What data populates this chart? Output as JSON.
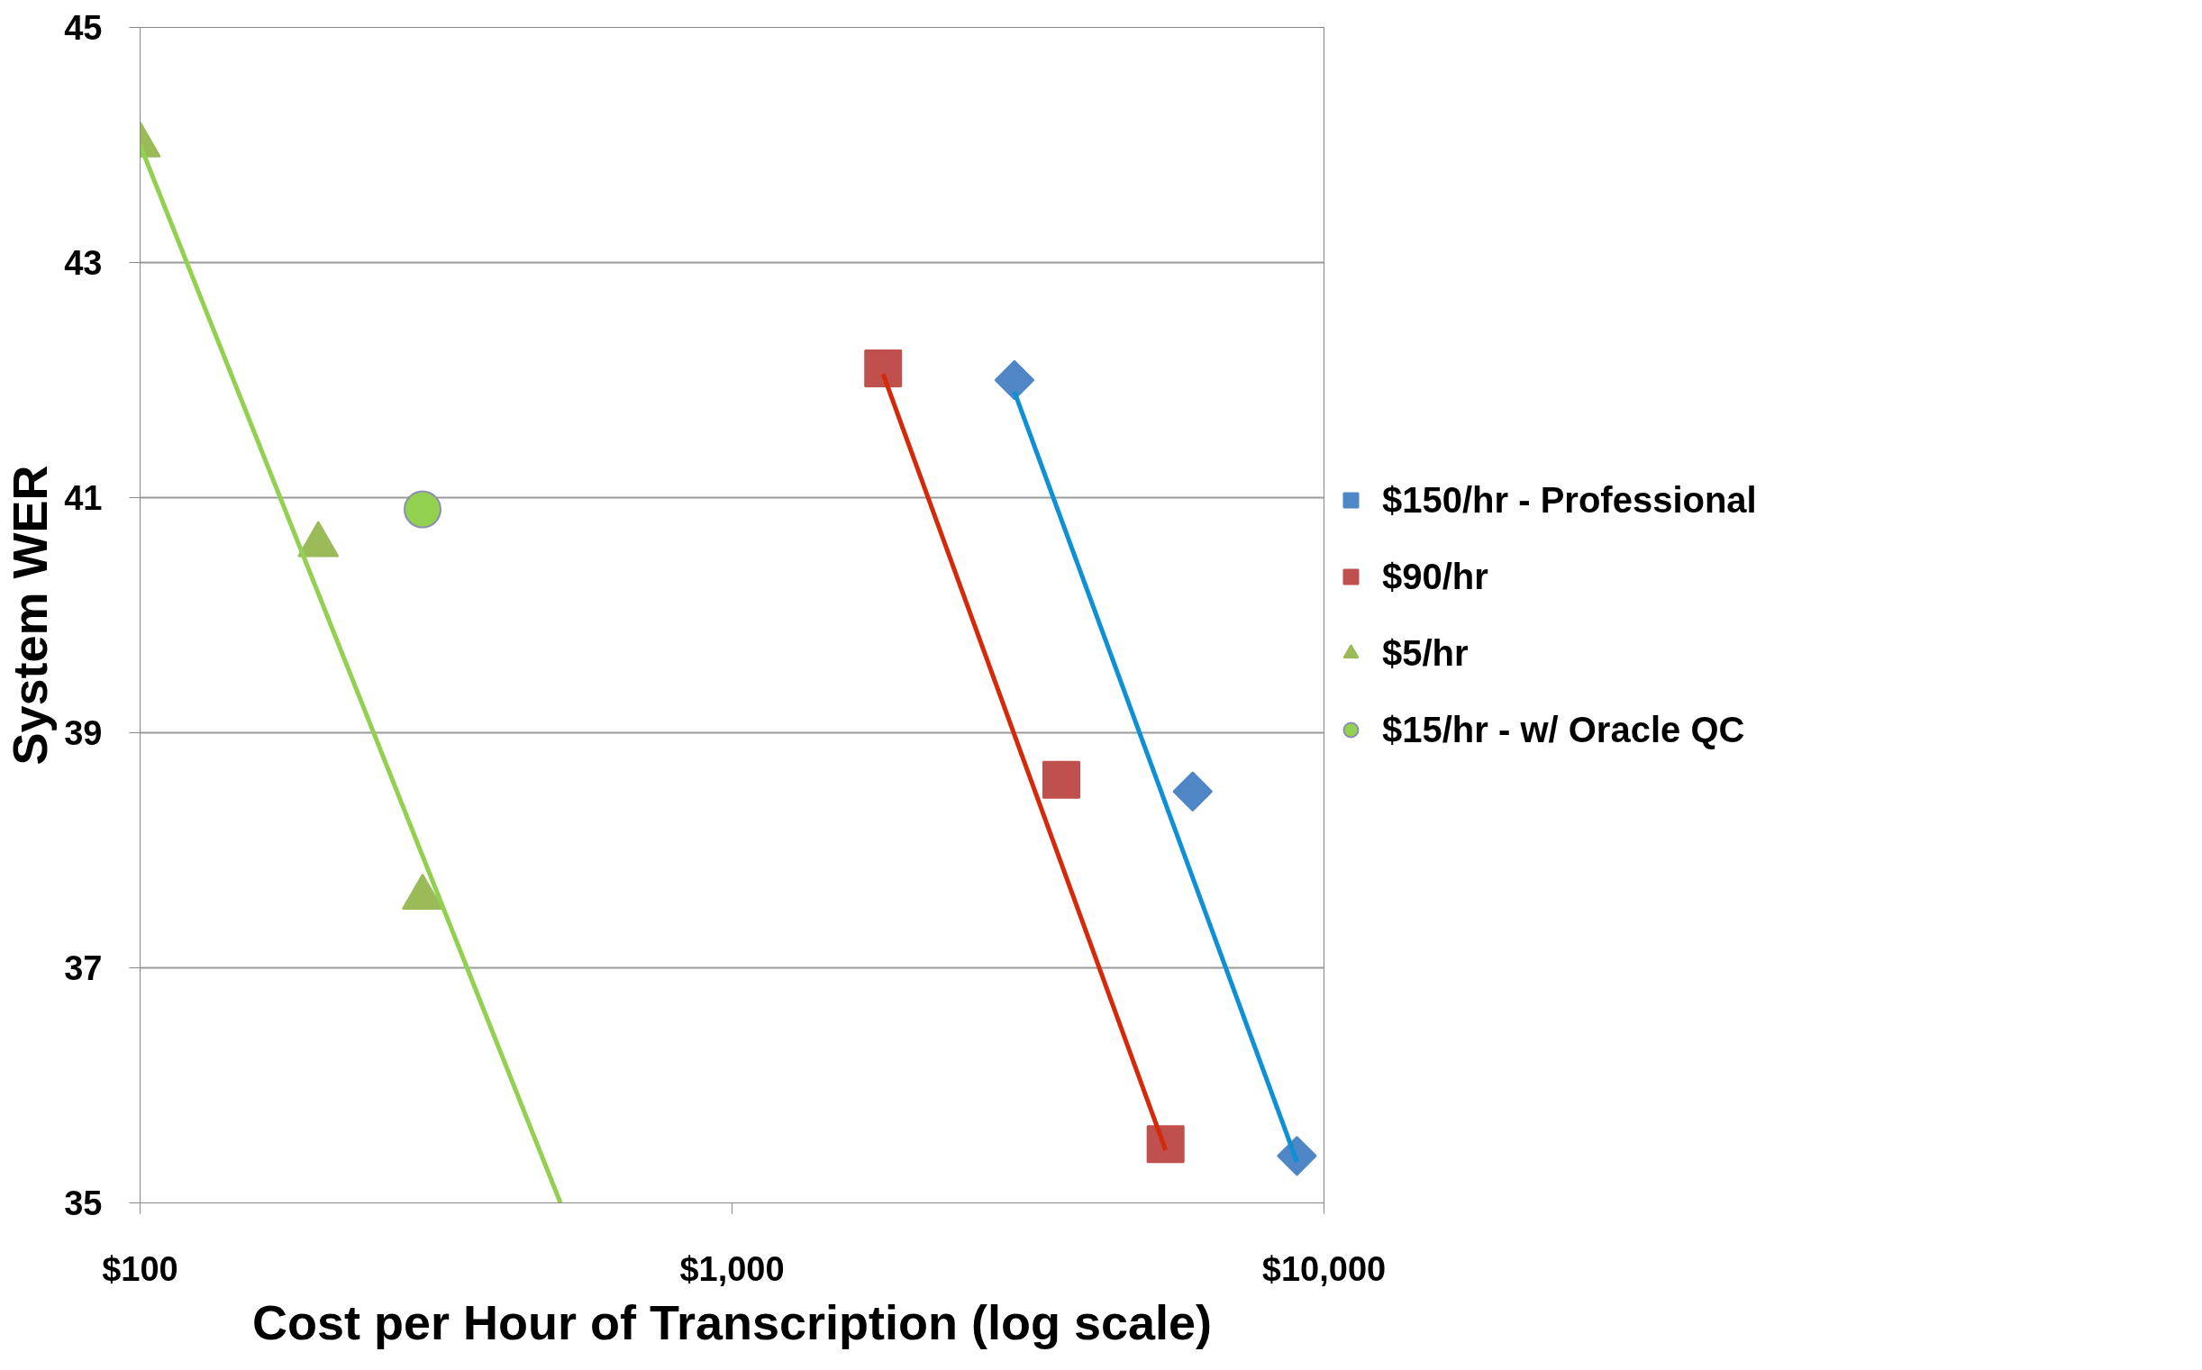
{
  "chart_data": {
    "type": "scatter",
    "xlabel": "Cost per Hour of Transcription (log scale)",
    "ylabel": "System WER",
    "log": "x",
    "xlim": [
      100,
      10000
    ],
    "ylim": [
      35,
      45
    ],
    "xticks": [
      {
        "value": 100,
        "label": "$100"
      },
      {
        "value": 1000,
        "label": "$1,000"
      },
      {
        "value": 10000,
        "label": "$10,000"
      }
    ],
    "yticks": [
      35,
      37,
      39,
      41,
      43,
      45
    ],
    "grid": "y",
    "legend": "right",
    "series": [
      {
        "name": "$150/hr - Professional",
        "color": "#4f86c6",
        "marker": "diamond",
        "x": [
          3000,
          6000,
          9000
        ],
        "values": [
          42.0,
          38.5,
          35.4
        ]
      },
      {
        "name": "$90/hr",
        "color": "#c0504d",
        "marker": "square",
        "x": [
          1800,
          3600,
          5400
        ],
        "values": [
          42.1,
          38.6,
          35.5
        ]
      },
      {
        "name": "$5/hr",
        "color": "#9bbb59",
        "marker": "triangle",
        "x": [
          100,
          200,
          300
        ],
        "values": [
          44.0,
          40.6,
          37.6
        ]
      },
      {
        "name": "$15/hr - w/ Oracle QC",
        "color": "#92d050",
        "marker": "circle",
        "x": [
          300
        ],
        "values": [
          40.9
        ]
      },
      {
        "type": "line",
        "color": "#0f8fd4",
        "x": [
          3000,
          9000
        ],
        "values": [
          41.9,
          35.35
        ]
      },
      {
        "type": "line",
        "color": "#d42a0a",
        "x": [
          1800,
          5400
        ],
        "values": [
          42.05,
          35.45
        ]
      },
      {
        "type": "line",
        "color": "#92d050",
        "x": [
          100,
          513
        ],
        "values": [
          44.0,
          35.0
        ]
      }
    ]
  }
}
